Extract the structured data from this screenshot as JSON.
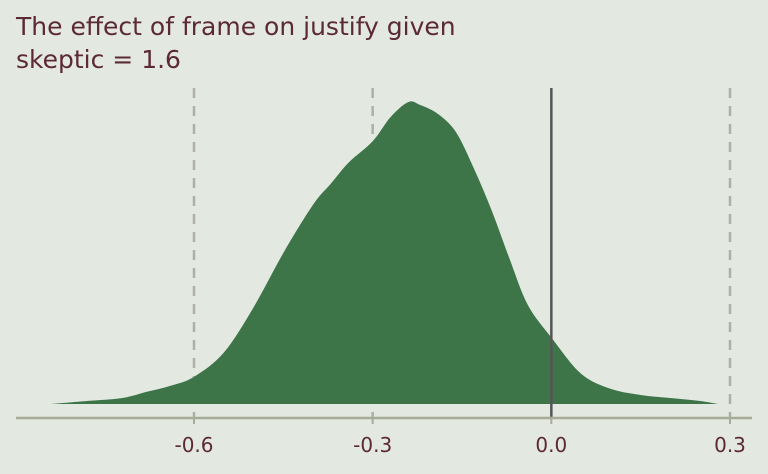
{
  "title_lines": [
    "The effect of frame on justify given",
    "skeptic = 1.6"
  ],
  "colors": {
    "background": "#e3e8e1",
    "density_fill": "#3d7549",
    "title": "#5b2a33",
    "axis": "#a8ab98",
    "gridline": "#aeb0a7",
    "zero_line": "#555555"
  },
  "chart_data": {
    "type": "area",
    "title": "The effect of frame on justify given skeptic = 1.6",
    "xlabel": "",
    "ylabel": "",
    "xlim": [
      -0.8,
      0.3
    ],
    "ylim": [
      0,
      1
    ],
    "x_ticks": [
      -0.6,
      -0.3,
      0.0,
      0.3
    ],
    "x_tick_labels": [
      "-0.6",
      "-0.3",
      "0.0",
      "0.3"
    ],
    "gridlines_dashed_at": [
      -0.6,
      -0.3,
      0.3
    ],
    "reference_line_at": 0.0,
    "grid": false,
    "legend": "none",
    "series": [
      {
        "x": [
          -0.84,
          -0.78,
          -0.72,
          -0.68,
          -0.64,
          -0.6,
          -0.55,
          -0.5,
          -0.45,
          -0.4,
          -0.37,
          -0.34,
          -0.3,
          -0.27,
          -0.24,
          -0.22,
          -0.19,
          -0.16,
          -0.13,
          -0.1,
          -0.07,
          -0.04,
          0.0,
          0.05,
          0.1,
          0.15,
          0.2,
          0.25,
          0.28
        ],
        "y": [
          0.0,
          0.01,
          0.02,
          0.04,
          0.06,
          0.09,
          0.17,
          0.32,
          0.5,
          0.66,
          0.73,
          0.8,
          0.87,
          0.95,
          1.0,
          0.99,
          0.96,
          0.9,
          0.78,
          0.64,
          0.48,
          0.33,
          0.22,
          0.1,
          0.05,
          0.03,
          0.02,
          0.01,
          0.0
        ]
      }
    ]
  }
}
